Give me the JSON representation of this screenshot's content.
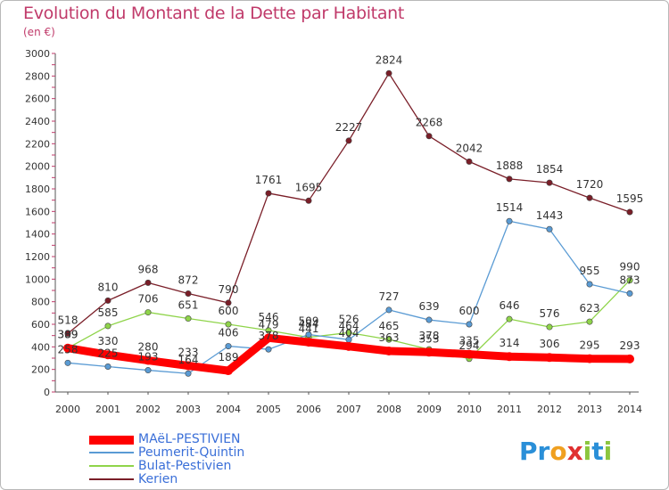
{
  "chart_data": {
    "type": "line",
    "title": "Evolution du Montant de la Dette par Habitant",
    "subtitle": "(en €)",
    "x": [
      "2000",
      "2001",
      "2002",
      "2003",
      "2004",
      "2005",
      "2006",
      "2007",
      "2008",
      "2009",
      "2010",
      "2011",
      "2012",
      "2013",
      "2014"
    ],
    "ylim": [
      0,
      3000
    ],
    "yticks": [
      0,
      200,
      400,
      600,
      800,
      1000,
      1200,
      1400,
      1600,
      1800,
      2000,
      2200,
      2400,
      2600,
      2800,
      3000
    ],
    "grid": false,
    "legend_position": "bottom-left",
    "series": [
      {
        "name": "MAëL-PESTIVIEN",
        "color": "#ff0000",
        "values": [
          389,
          330,
          280,
          233,
          189,
          479,
          441,
          404,
          363,
          353,
          335,
          314,
          306,
          295,
          293
        ]
      },
      {
        "name": "Peumerit-Quintin",
        "color": "#5a9bd4",
        "values": [
          258,
          225,
          193,
          164,
          406,
          378,
          509,
          464,
          727,
          639,
          600,
          1514,
          1443,
          955,
          873
        ]
      },
      {
        "name": "Bulat-Pestivien",
        "color": "#8fd44a",
        "values": [
          389,
          585,
          706,
          651,
          600,
          546,
          484,
          526,
          465,
          378,
          294,
          646,
          576,
          623,
          990
        ]
      },
      {
        "name": "Kerien",
        "color": "#7a1e28",
        "values": [
          518,
          810,
          968,
          872,
          790,
          1761,
          1695,
          2227,
          2824,
          2268,
          2042,
          1888,
          1854,
          1720,
          1595
        ]
      }
    ]
  },
  "logo": {
    "text": "Proxiti",
    "letters": [
      "P",
      "r",
      "o",
      "x",
      "i",
      "t",
      "i"
    ],
    "colors": [
      "#2a8fd8",
      "#2a8fd8",
      "#f0a020",
      "#e03030",
      "#8cc63f",
      "#2a8fd8",
      "#8cc63f"
    ]
  }
}
